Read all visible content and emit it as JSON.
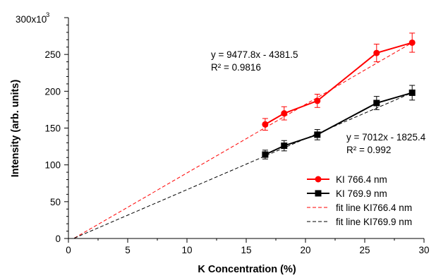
{
  "chart_data": {
    "type": "line",
    "xlabel": "K Concentration (%)",
    "ylabel": "Intensity (arb. units)",
    "y_multiplier_label": "300x10³",
    "xlim": [
      0,
      30
    ],
    "ylim": [
      0,
      300
    ],
    "x_ticks": [
      0,
      5,
      10,
      15,
      20,
      25,
      30
    ],
    "y_ticks": [
      0,
      50,
      100,
      150,
      200,
      250
    ],
    "grid": false,
    "legend_position": "bottom-right",
    "series": [
      {
        "name": "KI 766.4 nm",
        "color": "#ff0000",
        "marker": "circle",
        "x": [
          16.6,
          18.2,
          21.0,
          26.0,
          29.0
        ],
        "y": [
          155,
          170,
          187,
          252,
          266
        ],
        "error": [
          8,
          9,
          9,
          12,
          13
        ]
      },
      {
        "name": "KI 769.9 nm",
        "color": "#000000",
        "marker": "square",
        "x": [
          16.6,
          18.2,
          21.0,
          26.0,
          29.0
        ],
        "y": [
          114,
          126,
          141,
          184,
          198
        ],
        "error": [
          6,
          7,
          7,
          9,
          10
        ]
      }
    ],
    "fit_lines": [
      {
        "name": "fit line KI766.4 nm",
        "color": "#ff0000",
        "x": [
          0.5,
          29.0
        ],
        "y": [
          0.5,
          266
        ]
      },
      {
        "name": "fit line KI769.9 nm",
        "color": "#000000",
        "x": [
          0.5,
          29.0
        ],
        "y": [
          0.5,
          198
        ]
      }
    ],
    "annotations": [
      {
        "eq": "y = 9477.8x - 4381.5",
        "r2": "R² = 0.9816"
      },
      {
        "eq": "y = 7012x - 1825.4",
        "r2": "R² = 0.992"
      }
    ]
  }
}
